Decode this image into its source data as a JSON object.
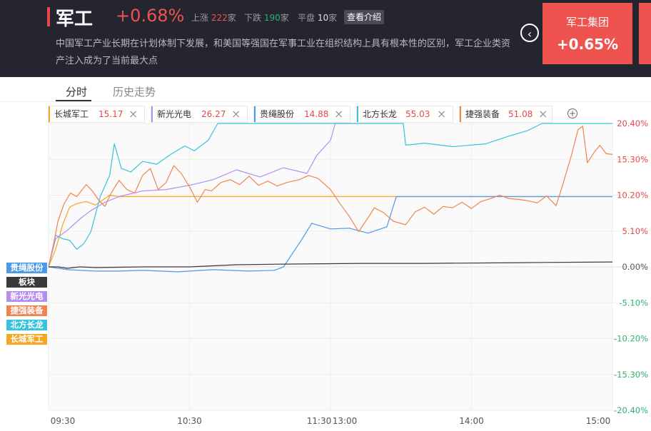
{
  "header": {
    "title": "军工",
    "change": "+0.68%",
    "up_label": "上涨",
    "up_count": "222",
    "down_label": "下跌",
    "down_count": "190",
    "flat_label": "平盘",
    "flat_count": "10",
    "unit": "家",
    "intro_button": "查看介绍",
    "description": "中国军工产业长期在计划体制下发展，和美国等强国在军事工业在组织结构上具有根本性的区别，军工企业类资产注入成为了当前最大点",
    "prev_icon": "chevron-left-icon",
    "card_name": "军工集团",
    "card_change": "+0.65%"
  },
  "tabs": {
    "intraday": "分时",
    "history": "历史走势"
  },
  "chips": [
    {
      "name": "长城军工",
      "price": "15.17",
      "color": "#f5a623"
    },
    {
      "name": "新光光电",
      "price": "26.27",
      "color": "#b68cf0"
    },
    {
      "name": "贵绳股份",
      "price": "14.88",
      "color": "#4a9ae8"
    },
    {
      "name": "北方长龙",
      "price": "55.03",
      "color": "#37c3dd"
    },
    {
      "name": "捷强装备",
      "price": "51.08",
      "color": "#f08451"
    }
  ],
  "close_icon": "close-icon",
  "add_icon": "plus-circle-icon",
  "legend": [
    {
      "name": "贵绳股份",
      "color": "#4a9ae8"
    },
    {
      "name": "板块",
      "color": "#3a3a3a"
    },
    {
      "name": "新光光电",
      "color": "#b68cf0"
    },
    {
      "name": "捷强装备",
      "color": "#f08451"
    },
    {
      "name": "北方长龙",
      "color": "#37c3dd"
    },
    {
      "name": "长城军工",
      "color": "#f5a623"
    }
  ],
  "chart_data": {
    "type": "line",
    "x_ticks": [
      "09:30",
      "10:30",
      "11:30",
      "13:00",
      "14:00",
      "15:00"
    ],
    "y_ticks": [
      "20.40%",
      "15.30%",
      "10.20%",
      "5.10%",
      "0.00%",
      "-5.10%",
      "-10.20%",
      "-15.30%",
      "-20.40%"
    ],
    "ylim": [
      -20.4,
      20.4
    ],
    "grid": true,
    "x_unit": "minutes since open (0-240)",
    "series": [
      {
        "name": "长城军工",
        "color": "#f5a623",
        "points": [
          [
            0,
            0
          ],
          [
            3,
            2.5
          ],
          [
            6,
            6
          ],
          [
            9,
            8.5
          ],
          [
            12,
            9
          ],
          [
            16,
            9.3
          ],
          [
            20,
            8.8
          ],
          [
            26,
            10.2
          ],
          [
            30,
            10
          ],
          [
            240,
            10
          ]
        ]
      },
      {
        "name": "新光光电",
        "color": "#b68cf0",
        "points": [
          [
            0,
            0
          ],
          [
            3,
            4
          ],
          [
            8,
            5.2
          ],
          [
            14,
            7
          ],
          [
            18,
            8
          ],
          [
            24,
            9.2
          ],
          [
            30,
            10
          ],
          [
            40,
            10.8
          ],
          [
            50,
            11
          ],
          [
            60,
            11.6
          ],
          [
            70,
            12.4
          ],
          [
            80,
            13.8
          ],
          [
            90,
            12.8
          ],
          [
            100,
            14.1
          ],
          [
            110,
            13.3
          ],
          [
            114,
            15.8
          ],
          [
            120,
            18
          ],
          [
            122,
            20.4
          ],
          [
            131,
            20.4
          ]
        ]
      },
      {
        "name": "贵绳股份",
        "color": "#4a9ae8",
        "points": [
          [
            0,
            0
          ],
          [
            8,
            -0.4
          ],
          [
            20,
            -0.6
          ],
          [
            30,
            -0.6
          ],
          [
            40,
            -0.5
          ],
          [
            55,
            -0.7
          ],
          [
            70,
            -0.4
          ],
          [
            85,
            -0.6
          ],
          [
            96,
            -0.5
          ],
          [
            100,
            0
          ],
          [
            104,
            2
          ],
          [
            108,
            4
          ],
          [
            112,
            6.2
          ],
          [
            120,
            5.4
          ],
          [
            128,
            5.5
          ],
          [
            136,
            4.8
          ],
          [
            144,
            5.7
          ],
          [
            148,
            10
          ],
          [
            240,
            10
          ]
        ]
      },
      {
        "name": "北方长龙",
        "color": "#37c3dd",
        "points": [
          [
            0,
            0
          ],
          [
            3,
            4.5
          ],
          [
            6,
            4
          ],
          [
            9,
            3.8
          ],
          [
            12,
            2.5
          ],
          [
            15,
            3.3
          ],
          [
            18,
            5
          ],
          [
            22,
            10
          ],
          [
            26,
            13
          ],
          [
            28,
            17.5
          ],
          [
            31,
            14
          ],
          [
            35,
            13.5
          ],
          [
            40,
            15
          ],
          [
            46,
            14.6
          ],
          [
            52,
            16
          ],
          [
            58,
            17.2
          ],
          [
            62,
            16.5
          ],
          [
            68,
            18
          ],
          [
            72,
            20.4
          ],
          [
            151,
            20.4
          ],
          [
            152,
            17.3
          ],
          [
            160,
            17.6
          ],
          [
            172,
            17.1
          ],
          [
            186,
            17.5
          ],
          [
            196,
            18.6
          ],
          [
            204,
            19.4
          ],
          [
            210,
            20.4
          ],
          [
            240,
            20.4
          ]
        ]
      },
      {
        "name": "捷强装备",
        "color": "#f08451",
        "points": [
          [
            0,
            0
          ],
          [
            3,
            3
          ],
          [
            6,
            6.5
          ],
          [
            10,
            9
          ],
          [
            14,
            10.5
          ],
          [
            18,
            10
          ],
          [
            24,
            11.7
          ],
          [
            28,
            10.8
          ],
          [
            32,
            9.5
          ],
          [
            36,
            8.6
          ],
          [
            40,
            10.5
          ],
          [
            45,
            12.3
          ],
          [
            50,
            11
          ],
          [
            55,
            10.5
          ],
          [
            60,
            13
          ],
          [
            65,
            14
          ],
          [
            70,
            11
          ],
          [
            75,
            12
          ],
          [
            80,
            14.4
          ],
          [
            85,
            13.2
          ],
          [
            90,
            11.4
          ],
          [
            95,
            9.2
          ],
          [
            100,
            11
          ],
          [
            104,
            10.8
          ],
          [
            110,
            12
          ],
          [
            116,
            12.4
          ],
          [
            122,
            11.7
          ],
          [
            128,
            12.9
          ],
          [
            134,
            11.6
          ],
          [
            140,
            12.2
          ],
          [
            146,
            11.5
          ],
          [
            152,
            12
          ],
          [
            160,
            12.4
          ],
          [
            166,
            13
          ],
          [
            172,
            12.6
          ],
          [
            180,
            11
          ],
          [
            186,
            9
          ],
          [
            192,
            7.2
          ],
          [
            198,
            5
          ],
          [
            204,
            7
          ],
          [
            208,
            8.4
          ],
          [
            214,
            7.7
          ],
          [
            220,
            6.5
          ],
          [
            228,
            6
          ],
          [
            234,
            7.8
          ],
          [
            240,
            8.5
          ],
          [
            246,
            7.5
          ],
          [
            252,
            8.6
          ],
          [
            258,
            8.4
          ],
          [
            264,
            9.2
          ],
          [
            270,
            8.3
          ],
          [
            276,
            9.3
          ],
          [
            282,
            9.7
          ],
          [
            288,
            10.2
          ],
          [
            294,
            9.7
          ],
          [
            300,
            9.6
          ],
          [
            306,
            9.4
          ],
          [
            312,
            9.1
          ],
          [
            318,
            10.1
          ],
          [
            324,
            8.7
          ],
          [
            328,
            11.5
          ],
          [
            334,
            16
          ],
          [
            338,
            19.5
          ],
          [
            341,
            20
          ],
          [
            344,
            14.8
          ],
          [
            348,
            16.2
          ],
          [
            352,
            17.3
          ],
          [
            356,
            16.1
          ],
          [
            360,
            16
          ]
        ]
      },
      {
        "name": "板块",
        "color": "#3a3a3a",
        "points": [
          [
            0,
            0
          ],
          [
            6,
            0
          ],
          [
            12,
            -0.2
          ],
          [
            20,
            0
          ],
          [
            30,
            -0.1
          ],
          [
            60,
            0
          ],
          [
            90,
            0
          ],
          [
            100,
            0.1
          ],
          [
            120,
            0.3
          ],
          [
            150,
            0.4
          ],
          [
            200,
            0.5
          ],
          [
            240,
            0.5
          ],
          [
            300,
            0.6
          ],
          [
            360,
            0.7
          ]
        ]
      }
    ]
  }
}
